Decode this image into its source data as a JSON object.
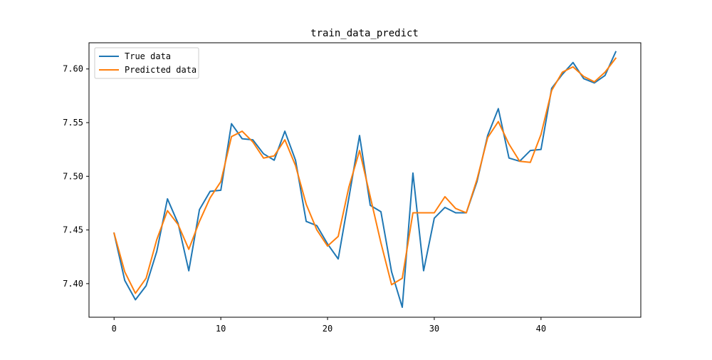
{
  "chart_data": {
    "type": "line",
    "title": "train_data_predict",
    "xlabel": "",
    "ylabel": "",
    "xlim": [
      -2.35,
      49.35
    ],
    "ylim": [
      7.3687,
      7.6244
    ],
    "xticks": [
      0,
      10,
      20,
      30,
      40
    ],
    "xtick_labels": [
      "0",
      "10",
      "20",
      "30",
      "40"
    ],
    "yticks": [
      7.4,
      7.45,
      7.5,
      7.55,
      7.6
    ],
    "ytick_labels": [
      "7.40",
      "7.45",
      "7.50",
      "7.55",
      "7.60"
    ],
    "grid": false,
    "legend_position": "upper left",
    "series": [
      {
        "name": "True data",
        "color": "#1f77b4",
        "x": [
          0,
          1,
          2,
          3,
          4,
          5,
          6,
          7,
          8,
          9,
          10,
          11,
          12,
          13,
          14,
          15,
          16,
          17,
          18,
          19,
          20,
          21,
          22,
          23,
          24,
          25,
          26,
          27,
          28,
          29,
          30,
          31,
          32,
          33,
          34,
          35,
          36,
          37,
          38,
          39,
          40,
          41,
          42,
          43,
          44,
          45,
          46,
          47
        ],
        "values": [
          7.447,
          7.403,
          7.385,
          7.398,
          7.43,
          7.479,
          7.456,
          7.412,
          7.469,
          7.486,
          7.487,
          7.549,
          7.535,
          7.534,
          7.521,
          7.515,
          7.542,
          7.515,
          7.458,
          7.454,
          7.437,
          7.423,
          7.48,
          7.538,
          7.473,
          7.467,
          7.411,
          7.378,
          7.503,
          7.412,
          7.461,
          7.471,
          7.466,
          7.466,
          7.495,
          7.538,
          7.563,
          7.517,
          7.514,
          7.524,
          7.525,
          7.582,
          7.595,
          7.606,
          7.591,
          7.587,
          7.594,
          7.616
        ]
      },
      {
        "name": "Predicted data",
        "color": "#ff7f0e",
        "x": [
          0,
          1,
          2,
          3,
          4,
          5,
          6,
          7,
          8,
          9,
          10,
          11,
          12,
          13,
          14,
          15,
          16,
          17,
          18,
          19,
          20,
          21,
          22,
          23,
          24,
          25,
          26,
          27,
          28,
          29,
          30,
          31,
          32,
          33,
          34,
          35,
          36,
          37,
          38,
          39,
          40,
          41,
          42,
          43,
          44,
          45,
          46,
          47
        ],
        "values": [
          7.447,
          7.411,
          7.391,
          7.405,
          7.441,
          7.468,
          7.455,
          7.432,
          7.458,
          7.48,
          7.495,
          7.537,
          7.542,
          7.532,
          7.517,
          7.519,
          7.534,
          7.51,
          7.474,
          7.45,
          7.435,
          7.444,
          7.49,
          7.524,
          7.481,
          7.438,
          7.399,
          7.405,
          7.466,
          7.466,
          7.466,
          7.481,
          7.47,
          7.466,
          7.497,
          7.536,
          7.551,
          7.53,
          7.514,
          7.513,
          7.539,
          7.58,
          7.597,
          7.602,
          7.593,
          7.588,
          7.597,
          7.61
        ]
      }
    ]
  }
}
